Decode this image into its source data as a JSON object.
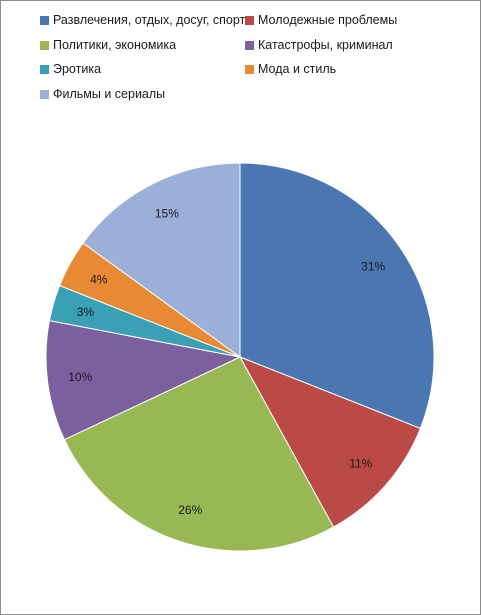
{
  "chart_data": {
    "type": "pie",
    "title": "",
    "legend_position": "top",
    "slices": [
      {
        "label": "Развлечения, отдых, досуг, спорт",
        "value": 31,
        "color": "#4a76b2",
        "value_label": "31%"
      },
      {
        "label": "Молодежные проблемы",
        "value": 11,
        "color": "#bb4a47",
        "value_label": "11%"
      },
      {
        "label": "Политики, экономика",
        "value": 26,
        "color": "#97b853",
        "value_label": "26%"
      },
      {
        "label": "Катастрофы, криминал",
        "value": 10,
        "color": "#7b5f9f",
        "value_label": "10%"
      },
      {
        "label": "Эротика",
        "value": 3,
        "color": "#3aa0b6",
        "value_label": "3%"
      },
      {
        "label": "Мода и стиль",
        "value": 4,
        "color": "#e88934",
        "value_label": "4%"
      },
      {
        "label": "Фильмы и сериалы",
        "value": 15,
        "color": "#9bb0d8",
        "value_label": "15%"
      }
    ]
  }
}
